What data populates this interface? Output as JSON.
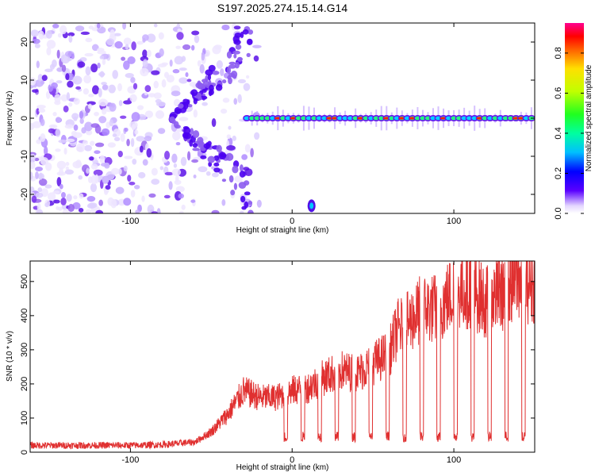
{
  "title": "S197.2025.274.15.14.G14",
  "chart_data": [
    {
      "type": "heatmap",
      "xlabel": "Height of straight line (km)",
      "ylabel": "Frequency (Hz)",
      "xlim": [
        -162,
        150
      ],
      "ylim": [
        -25,
        25
      ],
      "xticks": [
        -100,
        0,
        100
      ],
      "yticks": [
        -20,
        -10,
        0,
        10,
        20
      ],
      "colorbar": {
        "label": "Normalized spectral amplitude",
        "range": [
          0,
          0.95
        ],
        "ticks": [
          0.0,
          0.2,
          0.4,
          0.6,
          0.8
        ]
      },
      "features": {
        "carrier_band_frequency_hz": 0,
        "carrier_band_start_km": -28,
        "noise_region_end_km": -40,
        "isolated_blob": {
          "x_km": 12,
          "frequency_hz": -23
        }
      }
    },
    {
      "type": "line",
      "xlabel": "Height of straight line (km)",
      "ylabel": "SNR (10 * v/v)",
      "xlim": [
        -162,
        150
      ],
      "ylim": [
        0,
        560
      ],
      "xticks": [
        -100,
        0,
        100
      ],
      "yticks": [
        0,
        100,
        200,
        300,
        400,
        500
      ],
      "color": "#e03030",
      "series": [
        {
          "name": "SNR",
          "x": [
            -162,
            -140,
            -120,
            -100,
            -80,
            -60,
            -50,
            -40,
            -30,
            -20,
            -10,
            0,
            10,
            20,
            30,
            40,
            50,
            60,
            65,
            70,
            80,
            90,
            100,
            110,
            120,
            130,
            140,
            150
          ],
          "y": [
            20,
            20,
            20,
            20,
            22,
            30,
            60,
            110,
            180,
            160,
            160,
            180,
            190,
            220,
            240,
            230,
            260,
            290,
            360,
            370,
            420,
            420,
            470,
            480,
            440,
            470,
            510,
            490
          ]
        }
      ],
      "dropouts_baseline": 45
    }
  ]
}
